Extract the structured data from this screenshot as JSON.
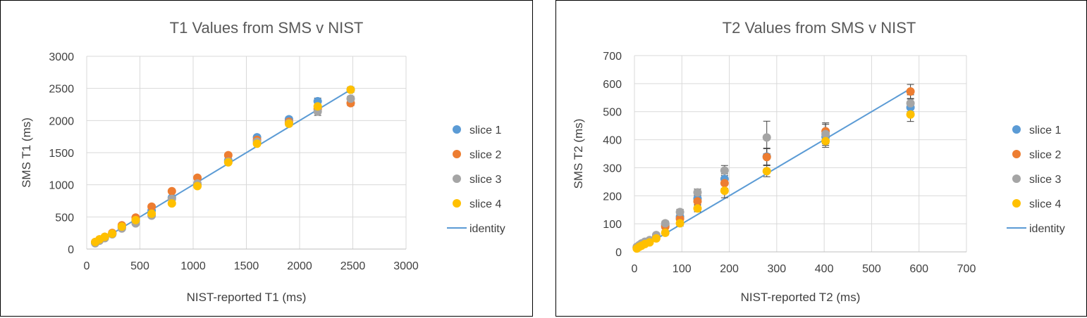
{
  "chart_data": [
    {
      "type": "scatter",
      "title": "T1 Values from SMS v NIST",
      "xlabel": "NIST-reported T1 (ms)",
      "ylabel": "SMS T1 (ms)",
      "xlim": [
        0,
        3000
      ],
      "ylim": [
        0,
        3000
      ],
      "xticks": [
        0,
        500,
        1000,
        1500,
        2000,
        2500,
        3000
      ],
      "yticks": [
        0,
        500,
        1000,
        1500,
        2000,
        2500,
        3000
      ],
      "x_tick_labels": [
        "0",
        "500",
        "1000",
        "1500",
        "2000",
        "2500",
        "3000"
      ],
      "y_tick_labels": [
        "0",
        "500",
        "1000",
        "1500",
        "2000",
        "2500",
        "3000"
      ],
      "grid": true,
      "legend_position": "right",
      "x": [
        80,
        120,
        170,
        240,
        330,
        460,
        610,
        800,
        1040,
        1330,
        1600,
        1900,
        2170,
        2480
      ],
      "series": [
        {
          "name": "slice 1",
          "color": "#5B9BD5",
          "values": [
            100,
            140,
            180,
            240,
            340,
            440,
            600,
            800,
            1000,
            1380,
            1740,
            2020,
            2300,
            2480
          ],
          "error": [
            10,
            10,
            10,
            12,
            15,
            15,
            20,
            25,
            30,
            30,
            30,
            35,
            50,
            40
          ]
        },
        {
          "name": "slice 2",
          "color": "#ED7D31",
          "values": [
            110,
            150,
            190,
            250,
            370,
            490,
            660,
            900,
            1110,
            1460,
            1700,
            1980,
            2180,
            2270
          ],
          "error": [
            10,
            10,
            10,
            12,
            15,
            15,
            20,
            25,
            30,
            30,
            30,
            35,
            50,
            40
          ]
        },
        {
          "name": "slice 3",
          "color": "#A5A5A5",
          "values": [
            90,
            130,
            170,
            230,
            320,
            400,
            520,
            780,
            1020,
            1360,
            1670,
            1960,
            2140,
            2340
          ],
          "error": [
            10,
            10,
            10,
            12,
            15,
            15,
            20,
            25,
            30,
            30,
            30,
            35,
            60,
            40
          ]
        },
        {
          "name": "slice 4",
          "color": "#FFC000",
          "values": [
            110,
            150,
            190,
            240,
            350,
            450,
            550,
            710,
            980,
            1350,
            1640,
            1950,
            2220,
            2480
          ],
          "error": [
            10,
            10,
            10,
            12,
            15,
            15,
            20,
            25,
            30,
            30,
            30,
            35,
            50,
            40
          ]
        }
      ],
      "identity": {
        "name": "identity",
        "color": "#5B9BD5",
        "from": [
          80,
          80
        ],
        "to": [
          2480,
          2480
        ]
      }
    },
    {
      "type": "scatter",
      "title": "T2 Values from SMS v NIST",
      "xlabel": "NIST-reported T2 (ms)",
      "ylabel": "SMS T2 (ms)",
      "xlim": [
        0,
        700
      ],
      "ylim": [
        0,
        700
      ],
      "xticks": [
        0,
        100,
        200,
        300,
        400,
        500,
        600,
        700
      ],
      "yticks": [
        0,
        100,
        200,
        300,
        400,
        500,
        600,
        700
      ],
      "x_tick_labels": [
        "0",
        "100",
        "200",
        "300",
        "400",
        "500",
        "600",
        "700"
      ],
      "y_tick_labels": [
        "0",
        "100",
        "200",
        "300",
        "400",
        "500",
        "600",
        "700"
      ],
      "grid": true,
      "legend_position": "right",
      "x": [
        5,
        10,
        15,
        22,
        32,
        46,
        65,
        96,
        133,
        190,
        279,
        403,
        582
      ],
      "series": [
        {
          "name": "slice 1",
          "color": "#5B9BD5",
          "values": [
            15,
            20,
            25,
            30,
            38,
            55,
            95,
            125,
            190,
            260,
            340,
            410,
            515
          ],
          "error": [
            2,
            2,
            3,
            3,
            4,
            5,
            8,
            10,
            12,
            18,
            30,
            25,
            30
          ]
        },
        {
          "name": "slice 2",
          "color": "#ED7D31",
          "values": [
            16,
            22,
            28,
            34,
            40,
            56,
            90,
            118,
            180,
            245,
            338,
            430,
            572
          ],
          "error": [
            2,
            2,
            3,
            3,
            4,
            5,
            8,
            10,
            12,
            18,
            30,
            25,
            25
          ]
        },
        {
          "name": "slice 3",
          "color": "#A5A5A5",
          "values": [
            18,
            24,
            30,
            36,
            42,
            60,
            102,
            142,
            212,
            290,
            408,
            420,
            530
          ],
          "error": [
            2,
            2,
            3,
            3,
            4,
            5,
            8,
            10,
            12,
            18,
            58,
            40,
            30
          ]
        },
        {
          "name": "slice 4",
          "color": "#FFC000",
          "values": [
            12,
            18,
            22,
            28,
            34,
            48,
            68,
            102,
            155,
            218,
            288,
            395,
            490
          ],
          "error": [
            2,
            2,
            3,
            3,
            4,
            5,
            8,
            10,
            12,
            25,
            20,
            22,
            25
          ]
        }
      ],
      "identity": {
        "name": "identity",
        "color": "#5B9BD5",
        "from": [
          5,
          5
        ],
        "to": [
          582,
          582
        ]
      }
    }
  ]
}
